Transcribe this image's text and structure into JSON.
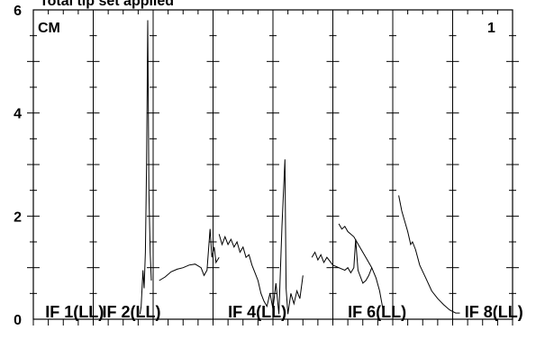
{
  "chart_data": {
    "type": "line",
    "title": "Total tip set applied",
    "corner_left": "CM",
    "corner_right": "1",
    "ylim": [
      0,
      6
    ],
    "yticks": [
      0,
      2,
      4,
      6
    ],
    "xlim": [
      0,
      8
    ],
    "minor_ticks_per_panel": 4,
    "grid": true,
    "panel_labels": [
      "IF 1(LL)",
      "IF 2(LL)",
      "IF 4(LL)",
      "IF 6(LL)",
      "IF 8(LL)"
    ],
    "panel_label_x": [
      0.2,
      1.15,
      3.25,
      5.25,
      7.2
    ],
    "series": [
      {
        "points": [
          [
            1.78,
            0.1
          ],
          [
            1.8,
            0.25
          ],
          [
            1.83,
            0.95
          ],
          [
            1.85,
            0.6
          ],
          [
            1.87,
            1.3
          ],
          [
            1.89,
            3.0
          ],
          [
            1.91,
            5.8
          ],
          [
            1.93,
            2.5
          ],
          [
            1.95,
            1.3
          ],
          [
            1.97,
            0.75
          ]
        ]
      },
      {
        "points": [
          [
            2.1,
            0.75
          ],
          [
            2.2,
            0.82
          ],
          [
            2.3,
            0.92
          ],
          [
            2.4,
            0.97
          ],
          [
            2.5,
            1.0
          ],
          [
            2.6,
            1.05
          ],
          [
            2.7,
            1.07
          ],
          [
            2.8,
            1.0
          ],
          [
            2.85,
            0.85
          ],
          [
            2.9,
            0.95
          ],
          [
            2.95,
            1.75
          ],
          [
            2.98,
            1.2
          ],
          [
            3.02,
            1.4
          ],
          [
            3.05,
            1.1
          ],
          [
            3.1,
            1.2
          ]
        ]
      },
      {
        "points": [
          [
            3.1,
            1.65
          ],
          [
            3.15,
            1.45
          ],
          [
            3.2,
            1.6
          ],
          [
            3.25,
            1.45
          ],
          [
            3.3,
            1.55
          ],
          [
            3.35,
            1.4
          ],
          [
            3.4,
            1.5
          ],
          [
            3.45,
            1.3
          ],
          [
            3.5,
            1.4
          ],
          [
            3.55,
            1.2
          ],
          [
            3.6,
            1.25
          ],
          [
            3.65,
            1.05
          ],
          [
            3.7,
            0.9
          ],
          [
            3.75,
            0.75
          ],
          [
            3.8,
            0.5
          ],
          [
            3.85,
            0.35
          ],
          [
            3.9,
            0.25
          ],
          [
            3.95,
            0.5
          ],
          [
            4.0,
            0.2
          ],
          [
            4.05,
            0.7
          ],
          [
            4.1,
            0.1
          ],
          [
            4.15,
            1.8
          ],
          [
            4.2,
            3.1
          ],
          [
            4.22,
            0.6
          ],
          [
            4.25,
            0.1
          ],
          [
            4.3,
            0.5
          ],
          [
            4.35,
            0.3
          ],
          [
            4.4,
            0.55
          ],
          [
            4.45,
            0.4
          ],
          [
            4.5,
            0.85
          ]
        ]
      },
      {
        "points": [
          [
            4.65,
            1.2
          ],
          [
            4.7,
            1.3
          ],
          [
            4.75,
            1.15
          ],
          [
            4.8,
            1.25
          ],
          [
            4.85,
            1.1
          ],
          [
            4.9,
            1.2
          ],
          [
            5.0,
            1.05
          ],
          [
            5.1,
            1.0
          ],
          [
            5.2,
            0.95
          ],
          [
            5.25,
            1.0
          ],
          [
            5.3,
            0.9
          ],
          [
            5.35,
            1.0
          ],
          [
            5.38,
            1.55
          ],
          [
            5.42,
            0.95
          ],
          [
            5.5,
            0.7
          ],
          [
            5.55,
            0.75
          ],
          [
            5.6,
            0.85
          ],
          [
            5.65,
            1.0
          ]
        ]
      },
      {
        "points": [
          [
            5.1,
            1.85
          ],
          [
            5.15,
            1.75
          ],
          [
            5.2,
            1.8
          ],
          [
            5.25,
            1.7
          ],
          [
            5.35,
            1.6
          ],
          [
            5.45,
            1.4
          ],
          [
            5.55,
            1.2
          ],
          [
            5.65,
            1.0
          ],
          [
            5.72,
            0.8
          ],
          [
            5.78,
            0.55
          ],
          [
            5.82,
            0.3
          ],
          [
            5.85,
            0.1
          ]
        ]
      },
      {
        "points": [
          [
            6.1,
            2.4
          ],
          [
            6.15,
            2.1
          ],
          [
            6.2,
            1.9
          ],
          [
            6.25,
            1.7
          ],
          [
            6.3,
            1.45
          ],
          [
            6.33,
            1.5
          ],
          [
            6.38,
            1.35
          ],
          [
            6.45,
            1.05
          ],
          [
            6.55,
            0.8
          ],
          [
            6.65,
            0.55
          ],
          [
            6.75,
            0.4
          ],
          [
            6.85,
            0.28
          ],
          [
            6.95,
            0.18
          ],
          [
            7.05,
            0.12
          ],
          [
            7.12,
            0.12
          ]
        ]
      }
    ]
  }
}
